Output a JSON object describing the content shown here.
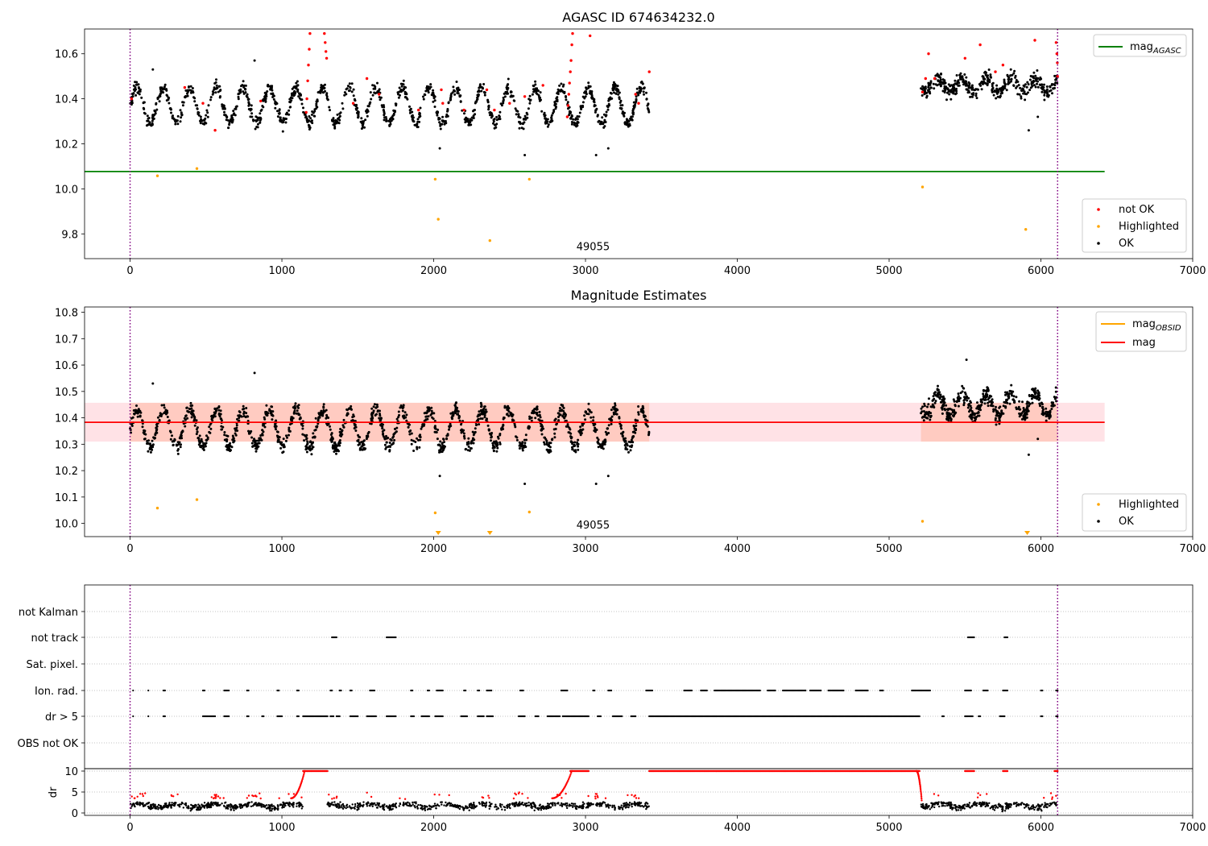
{
  "chart_data": [
    {
      "type": "scatter",
      "title": "AGASC ID 674634232.0",
      "xlim": [
        -300,
        7000
      ],
      "ylim": [
        9.69,
        10.71
      ],
      "xticks": [
        0,
        1000,
        2000,
        3000,
        4000,
        5000,
        6000,
        7000
      ],
      "yticks": [
        9.8,
        10.0,
        10.2,
        10.4,
        10.6
      ],
      "obsid_lines_x": [
        0,
        6110
      ],
      "annotation": {
        "text": "49055",
        "x": 3050,
        "y": 9.72
      },
      "hlines": [
        {
          "name": "mag_AGASC",
          "y": 10.077,
          "x_range": [
            -300,
            6420
          ],
          "color": "#008000"
        }
      ],
      "legend_top": [
        {
          "label": "mag",
          "sub": "AGASC",
          "color": "#008000"
        }
      ],
      "legend_bottom": [
        {
          "label": "not OK",
          "color": "#ff0000"
        },
        {
          "label": "Highlighted",
          "color": "#ffa500"
        },
        {
          "label": "OK",
          "color": "#000000"
        }
      ],
      "series": [
        {
          "name": "OK",
          "color": "#000000",
          "segments": [
            {
              "x": [
                0,
                3420
              ],
              "center": 10.37,
              "amp": 0.08,
              "period": 175,
              "noise": 0.05,
              "n": 1300
            },
            {
              "x": [
                5210,
                6110
              ],
              "center": 10.46,
              "amp": 0.03,
              "period": 160,
              "noise": 0.06,
              "n": 420
            }
          ],
          "points": [
            [
              150,
              10.53
            ],
            [
              820,
              10.57
            ],
            [
              2040,
              10.18
            ],
            [
              2600,
              10.15
            ],
            [
              3070,
              10.15
            ],
            [
              3150,
              10.18
            ],
            [
              5920,
              10.26
            ],
            [
              5980,
              10.32
            ]
          ]
        },
        {
          "name": "not OK",
          "color": "#ff0000",
          "points": [
            [
              10,
              10.4
            ],
            [
              360,
              10.45
            ],
            [
              480,
              10.38
            ],
            [
              560,
              10.26
            ],
            [
              860,
              10.39
            ],
            [
              1160,
              10.34
            ],
            [
              1165,
              10.4
            ],
            [
              1170,
              10.48
            ],
            [
              1175,
              10.55
            ],
            [
              1180,
              10.62
            ],
            [
              1185,
              10.69
            ],
            [
              1280,
              10.69
            ],
            [
              1285,
              10.65
            ],
            [
              1290,
              10.61
            ],
            [
              1295,
              10.58
            ],
            [
              1470,
              10.38
            ],
            [
              1560,
              10.49
            ],
            [
              1640,
              10.42
            ],
            [
              1900,
              10.35
            ],
            [
              2050,
              10.44
            ],
            [
              2060,
              10.38
            ],
            [
              2200,
              10.35
            ],
            [
              2350,
              10.44
            ],
            [
              2400,
              10.35
            ],
            [
              2500,
              10.38
            ],
            [
              2600,
              10.41
            ],
            [
              2720,
              10.46
            ],
            [
              2880,
              10.32
            ],
            [
              2885,
              10.37
            ],
            [
              2890,
              10.42
            ],
            [
              2895,
              10.47
            ],
            [
              2900,
              10.52
            ],
            [
              2905,
              10.57
            ],
            [
              2910,
              10.64
            ],
            [
              2915,
              10.69
            ],
            [
              3030,
              10.68
            ],
            [
              3330,
              10.42
            ],
            [
              3350,
              10.38
            ],
            [
              3420,
              10.52
            ],
            [
              5220,
              10.43
            ],
            [
              5240,
              10.49
            ],
            [
              5260,
              10.6
            ],
            [
              5300,
              10.49
            ],
            [
              5500,
              10.58
            ],
            [
              5600,
              10.64
            ],
            [
              5700,
              10.52
            ],
            [
              5750,
              10.55
            ],
            [
              5960,
              10.66
            ],
            [
              6100,
              10.65
            ],
            [
              6105,
              10.6
            ],
            [
              6108,
              10.56
            ],
            [
              6110,
              10.5
            ]
          ]
        },
        {
          "name": "Highlighted",
          "color": "#ffa500",
          "points": [
            [
              180,
              10.058
            ],
            [
              440,
              10.09
            ],
            [
              2010,
              10.043
            ],
            [
              2030,
              9.865
            ],
            [
              2370,
              9.77
            ],
            [
              2630,
              10.043
            ],
            [
              5220,
              10.008
            ],
            [
              5900,
              9.82
            ]
          ]
        }
      ]
    },
    {
      "type": "scatter",
      "title": "Magnitude Estimates",
      "xlim": [
        -300,
        7000
      ],
      "ylim": [
        9.95,
        10.82
      ],
      "xticks": [
        0,
        1000,
        2000,
        3000,
        4000,
        5000,
        6000,
        7000
      ],
      "yticks": [
        10.0,
        10.1,
        10.2,
        10.3,
        10.4,
        10.5,
        10.6,
        10.7,
        10.8
      ],
      "obsid_lines_x": [
        0,
        6110
      ],
      "annotation": {
        "text": "49055",
        "x": 3050,
        "y": 9.975
      },
      "hlines": [
        {
          "name": "mag",
          "y": 10.383,
          "x_range": [
            -300,
            6420
          ],
          "color": "#ff0000"
        }
      ],
      "band": {
        "y": [
          10.31,
          10.457
        ],
        "x_range": [
          -300,
          6420
        ]
      },
      "legend_top": [
        {
          "label": "mag",
          "sub": "OBSID",
          "color": "#ffa500"
        },
        {
          "label": "mag",
          "sub": "",
          "color": "#ff0000"
        }
      ],
      "legend_bottom": [
        {
          "label": "Highlighted",
          "color": "#ffa500"
        },
        {
          "label": "OK",
          "color": "#000000"
        }
      ],
      "series": [
        {
          "name": "OK",
          "color": "#000000",
          "segments": [
            {
              "x": [
                0,
                3420
              ],
              "center": 10.36,
              "amp": 0.07,
              "period": 175,
              "noise": 0.05,
              "n": 1500
            },
            {
              "x": [
                5210,
                6110
              ],
              "center": 10.45,
              "amp": 0.04,
              "period": 160,
              "noise": 0.06,
              "n": 480
            }
          ],
          "points": [
            [
              150,
              10.53
            ],
            [
              820,
              10.57
            ],
            [
              2040,
              10.18
            ],
            [
              2600,
              10.15
            ],
            [
              3070,
              10.15
            ],
            [
              3150,
              10.18
            ],
            [
              5510,
              10.62
            ],
            [
              5920,
              10.26
            ],
            [
              5980,
              10.32
            ]
          ]
        },
        {
          "name": "Highlighted",
          "color": "#ffa500",
          "points": [
            [
              180,
              10.058
            ],
            [
              440,
              10.09
            ],
            [
              2010,
              10.04
            ],
            [
              2630,
              10.043
            ],
            [
              5220,
              10.008
            ]
          ],
          "markers_low": [
            2030,
            2370,
            5910
          ]
        }
      ]
    },
    {
      "type": "scatter",
      "title": "",
      "xlim": [
        -300,
        7000
      ],
      "xticks": [
        0,
        1000,
        2000,
        3000,
        4000,
        5000,
        6000,
        7000
      ],
      "obsid_lines_x": [
        0,
        6110
      ],
      "flag_rows": [
        "not Kalman",
        "not track",
        "Sat. pixel.",
        "Ion. rad.",
        "dr > 5",
        "OBS not OK"
      ],
      "flags": {
        "not track": [
          [
            1330,
            1360
          ],
          [
            1690,
            1750
          ],
          [
            5520,
            5560
          ],
          [
            5760,
            5780
          ]
        ],
        "Ion. rad.": [
          [
            20,
            20
          ],
          [
            120,
            120
          ],
          [
            220,
            230
          ],
          [
            480,
            490
          ],
          [
            620,
            650
          ],
          [
            770,
            780
          ],
          [
            970,
            980
          ],
          [
            1100,
            1110
          ],
          [
            1320,
            1330
          ],
          [
            1380,
            1390
          ],
          [
            1450,
            1460
          ],
          [
            1580,
            1610
          ],
          [
            1850,
            1860
          ],
          [
            1960,
            1970
          ],
          [
            2020,
            2060
          ],
          [
            2200,
            2210
          ],
          [
            2290,
            2300
          ],
          [
            2350,
            2380
          ],
          [
            2570,
            2590
          ],
          [
            2840,
            2880
          ],
          [
            3050,
            3060
          ],
          [
            3150,
            3170
          ],
          [
            3400,
            3440
          ],
          [
            3650,
            3700
          ],
          [
            3760,
            3800
          ],
          [
            3850,
            4150
          ],
          [
            4200,
            4250
          ],
          [
            4300,
            4450
          ],
          [
            4480,
            4550
          ],
          [
            4600,
            4700
          ],
          [
            4780,
            4860
          ],
          [
            4940,
            4960
          ],
          [
            5150,
            5270
          ],
          [
            5500,
            5540
          ],
          [
            5620,
            5650
          ],
          [
            5750,
            5780
          ],
          [
            6000,
            6010
          ],
          [
            6100,
            6110
          ]
        ],
        "dr > 5": [
          [
            20,
            20
          ],
          [
            120,
            120
          ],
          [
            220,
            230
          ],
          [
            480,
            560
          ],
          [
            620,
            650
          ],
          [
            770,
            780
          ],
          [
            870,
            880
          ],
          [
            970,
            1000
          ],
          [
            1100,
            1110
          ],
          [
            1140,
            1300
          ],
          [
            1320,
            1340
          ],
          [
            1360,
            1380
          ],
          [
            1450,
            1500
          ],
          [
            1560,
            1620
          ],
          [
            1690,
            1750
          ],
          [
            1850,
            1870
          ],
          [
            1920,
            1970
          ],
          [
            2010,
            2060
          ],
          [
            2180,
            2220
          ],
          [
            2290,
            2330
          ],
          [
            2350,
            2390
          ],
          [
            2560,
            2600
          ],
          [
            2670,
            2690
          ],
          [
            2750,
            2830
          ],
          [
            2850,
            3020
          ],
          [
            3080,
            3100
          ],
          [
            3180,
            3240
          ],
          [
            3300,
            3330
          ],
          [
            3420,
            5200
          ],
          [
            5350,
            5360
          ],
          [
            5500,
            5550
          ],
          [
            5590,
            5600
          ],
          [
            5730,
            5760
          ],
          [
            6000,
            6010
          ],
          [
            6100,
            6110
          ]
        ]
      },
      "dr": {
        "ylabel": "dr",
        "ylim": [
          -0.5,
          10.5
        ],
        "yticks": [
          0,
          5,
          10
        ],
        "segments": [
          {
            "x": [
              0,
              1140
            ],
            "center": 1.8,
            "noise": 1.3,
            "n": 450
          },
          {
            "x": [
              1300,
              3420
            ],
            "center": 1.8,
            "noise": 1.3,
            "n": 650
          },
          {
            "x": [
              5210,
              6110
            ],
            "center": 1.8,
            "noise": 1.3,
            "n": 320
          }
        ],
        "saturated": [
          [
            1140,
            1300
          ],
          [
            2900,
            3020
          ],
          [
            3420,
            5200
          ],
          [
            5500,
            5560
          ],
          [
            5750,
            5780
          ],
          [
            6090,
            6110
          ]
        ],
        "ramps": [
          [
            1060,
            1150,
            3.5,
            10
          ],
          [
            2780,
            2910,
            3.5,
            10
          ],
          [
            5180,
            5215,
            10,
            3
          ]
        ]
      }
    }
  ]
}
